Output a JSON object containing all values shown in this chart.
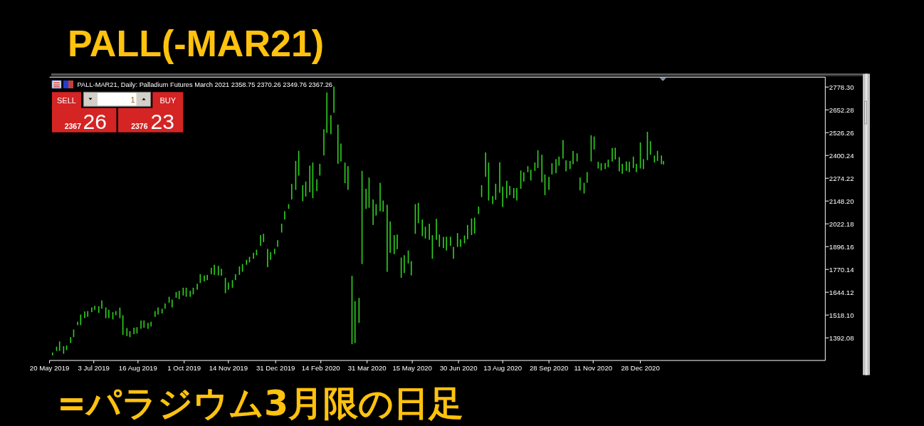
{
  "chart_data": {
    "type": "bar",
    "title": "PALL(-MAR21)",
    "subtitle": "PALL-MAR21, Daily: Palladium Futures March 2021 2358.75 2370.26 2349.76 2367.26",
    "annotations": [
      "=パラジウム3月限の日足",
      "SELL",
      "1",
      "BUY",
      "2367",
      "26",
      "2376",
      "23"
    ],
    "color": "#30d020",
    "x": [
      "2019-05-23",
      "2019-05-27",
      "2019-05-30",
      "2019-06-03",
      "2019-06-06",
      "2019-06-10",
      "2019-06-13",
      "2019-06-17",
      "2019-06-20",
      "2019-06-24",
      "2019-06-27",
      "2019-07-01",
      "2019-07-04",
      "2019-07-08",
      "2019-07-11",
      "2019-07-15",
      "2019-07-18",
      "2019-07-22",
      "2019-07-25",
      "2019-07-29",
      "2019-08-01",
      "2019-08-05",
      "2019-08-08",
      "2019-08-12",
      "2019-08-15",
      "2019-08-19",
      "2019-08-22",
      "2019-08-26",
      "2019-08-29",
      "2019-09-02",
      "2019-09-05",
      "2019-09-09",
      "2019-09-12",
      "2019-09-16",
      "2019-09-19",
      "2019-09-23",
      "2019-09-26",
      "2019-09-30",
      "2019-10-03",
      "2019-10-07",
      "2019-10-10",
      "2019-10-14",
      "2019-10-17",
      "2019-10-21",
      "2019-10-24",
      "2019-10-28",
      "2019-10-31",
      "2019-11-04",
      "2019-11-07",
      "2019-11-11",
      "2019-11-14",
      "2019-11-18",
      "2019-11-21",
      "2019-11-25",
      "2019-11-28",
      "2019-12-02",
      "2019-12-05",
      "2019-12-09",
      "2019-12-12",
      "2019-12-16",
      "2019-12-19",
      "2019-12-23",
      "2019-12-26",
      "2019-12-30",
      "2020-01-02",
      "2020-01-06",
      "2020-01-09",
      "2020-01-13",
      "2020-01-16",
      "2020-01-20",
      "2020-01-23",
      "2020-01-27",
      "2020-01-30",
      "2020-02-03",
      "2020-02-06",
      "2020-02-10",
      "2020-02-13",
      "2020-02-17",
      "2020-02-20",
      "2020-02-24",
      "2020-02-27",
      "2020-03-02",
      "2020-03-05",
      "2020-03-09",
      "2020-03-12",
      "2020-03-16",
      "2020-03-19",
      "2020-03-23",
      "2020-03-26",
      "2020-03-30",
      "2020-04-02",
      "2020-04-06",
      "2020-04-09",
      "2020-04-13",
      "2020-04-16",
      "2020-04-20",
      "2020-04-23",
      "2020-04-27",
      "2020-04-30",
      "2020-05-04",
      "2020-05-07",
      "2020-05-11",
      "2020-05-14",
      "2020-05-18",
      "2020-05-21",
      "2020-05-25",
      "2020-05-28",
      "2020-06-01",
      "2020-06-04",
      "2020-06-08",
      "2020-06-11",
      "2020-06-15",
      "2020-06-18",
      "2020-06-22",
      "2020-06-25",
      "2020-06-29",
      "2020-07-02",
      "2020-07-06",
      "2020-07-09",
      "2020-07-13",
      "2020-07-16",
      "2020-07-20",
      "2020-07-23",
      "2020-07-27",
      "2020-07-30",
      "2020-08-03",
      "2020-08-06",
      "2020-08-10",
      "2020-08-13",
      "2020-08-17",
      "2020-08-20",
      "2020-08-24",
      "2020-08-27",
      "2020-08-31",
      "2020-09-03",
      "2020-09-07",
      "2020-09-10",
      "2020-09-14",
      "2020-09-17",
      "2020-09-21",
      "2020-09-24",
      "2020-09-28",
      "2020-10-01",
      "2020-10-05",
      "2020-10-08",
      "2020-10-12",
      "2020-10-15",
      "2020-10-19",
      "2020-10-22",
      "2020-10-26",
      "2020-10-29",
      "2020-11-02",
      "2020-11-05",
      "2020-11-09",
      "2020-11-12",
      "2020-11-16",
      "2020-11-19",
      "2020-11-23",
      "2020-11-26",
      "2020-11-30",
      "2020-12-03",
      "2020-12-07",
      "2020-12-10",
      "2020-12-14",
      "2020-12-17",
      "2020-12-21",
      "2020-12-24",
      "2020-12-28",
      "2020-12-31",
      "2021-01-04",
      "2021-01-07",
      "2021-01-11",
      "2021-01-14",
      "2021-01-18",
      "2021-01-20"
    ],
    "base": [
      1295,
      1320,
      1320,
      1304,
      1324,
      1363,
      1396,
      1462,
      1462,
      1501,
      1508,
      1534,
      1547,
      1530,
      1553,
      1501,
      1501,
      1494,
      1517,
      1501,
      1409,
      1402,
      1396,
      1412,
      1416,
      1442,
      1448,
      1442,
      1455,
      1508,
      1521,
      1527,
      1553,
      1586,
      1560,
      1613,
      1606,
      1626,
      1619,
      1619,
      1632,
      1658,
      1695,
      1704,
      1711,
      1744,
      1740,
      1737,
      1735,
      1639,
      1658,
      1669,
      1711,
      1740,
      1757,
      1796,
      1809,
      1829,
      1849,
      1901,
      1921,
      1783,
      1823,
      1855,
      1895,
      1974,
      2046,
      2105,
      2157,
      2210,
      2289,
      2147,
      2173,
      2197,
      2164,
      2203,
      2289,
      2400,
      2525,
      2518,
      2636,
      2354,
      2367,
      2247,
      2210,
      1357,
      1363,
      1475,
      1800,
      2105,
      2111,
      2016,
      2068,
      2092,
      2089,
      1757,
      1862,
      1855,
      1882,
      1724,
      1750,
      1803,
      1737,
      1967,
      2026,
      1954,
      1941,
      1934,
      1829,
      1934,
      1895,
      1888,
      1875,
      1901,
      1829,
      1895,
      1895,
      1914,
      1937,
      1960,
      1968,
      2076,
      2170,
      2282,
      2151,
      2131,
      2155,
      2194,
      2115,
      2164,
      2181,
      2164,
      2151,
      2216,
      2256,
      2308,
      2262,
      2315,
      2331,
      2252,
      2181,
      2210,
      2295,
      2302,
      2344,
      2383,
      2312,
      2325,
      2352,
      2367,
      2207,
      2190,
      2249,
      2367,
      2433,
      2328,
      2317,
      2325,
      2335,
      2367,
      2378,
      2312,
      2299,
      2315,
      2308,
      2331,
      2308,
      2328,
      2325,
      2374,
      2404,
      2361,
      2370,
      2352,
      2350
    ],
    "values": [
      16,
      23,
      52,
      42,
      26,
      33,
      42,
      19,
      59,
      37,
      32,
      26,
      22,
      37,
      46,
      59,
      46,
      40,
      23,
      58,
      108,
      44,
      33,
      36,
      35,
      46,
      40,
      33,
      26,
      32,
      39,
      26,
      29,
      33,
      43,
      32,
      46,
      43,
      50,
      33,
      37,
      33,
      49,
      33,
      29,
      35,
      56,
      53,
      39,
      85,
      40,
      42,
      33,
      47,
      43,
      27,
      31,
      33,
      30,
      59,
      46,
      101,
      43,
      29,
      37,
      49,
      46,
      26,
      86,
      160,
      137,
      89,
      83,
      147,
      197,
      66,
      65,
      145,
      223,
      105,
      145,
      217,
      99,
      114,
      131,
      378,
      232,
      138,
      515,
      111,
      167,
      141,
      63,
      157,
      62,
      371,
      173,
      105,
      81,
      112,
      99,
      72,
      79,
      164,
      112,
      92,
      65,
      89,
      131,
      116,
      68,
      62,
      76,
      50,
      66,
      76,
      42,
      44,
      79,
      92,
      88,
      42,
      66,
      135,
      210,
      45,
      89,
      168,
      113,
      96,
      51,
      56,
      69,
      101,
      51,
      33,
      59,
      46,
      98,
      152,
      114,
      72,
      62,
      78,
      50,
      102,
      61,
      45,
      73,
      45,
      71,
      59,
      59,
      145,
      72,
      37,
      40,
      33,
      42,
      74,
      65,
      79,
      55,
      52,
      57,
      63,
      46,
      144,
      55,
      157,
      75,
      39,
      56,
      48,
      20
    ],
    "xlim": [
      "2019-05-20",
      "2021-06-30"
    ],
    "xticks": [
      {
        "value": "2019-05-20",
        "label": "20 May 2019"
      },
      {
        "value": "2019-07-03",
        "label": "3 Jul 2019"
      },
      {
        "value": "2019-08-16",
        "label": "16 Aug 2019"
      },
      {
        "value": "2019-10-01",
        "label": "1 Oct 2019"
      },
      {
        "value": "2019-11-14",
        "label": "14 Nov 2019"
      },
      {
        "value": "2019-12-31",
        "label": "31 Dec 2019"
      },
      {
        "value": "2020-02-14",
        "label": "14 Feb 2020"
      },
      {
        "value": "2020-03-31",
        "label": "31 Mar 2020"
      },
      {
        "value": "2020-05-15",
        "label": "15 May 2020"
      },
      {
        "value": "2020-06-30",
        "label": "30 Jun 2020"
      },
      {
        "value": "2020-08-13",
        "label": "13 Aug 2020"
      },
      {
        "value": "2020-09-28",
        "label": "28 Sep 2020"
      },
      {
        "value": "2020-11-11",
        "label": "11 Nov 2020"
      },
      {
        "value": "2020-12-28",
        "label": "28 Dec 2020"
      }
    ],
    "ylim": [
      1267,
      2833
    ],
    "yticks": [
      {
        "value": 2778.3,
        "label": "2778.30"
      },
      2652.28,
      2526.26,
      2400.24,
      2274.22,
      {
        "value": 2148.2,
        "label": "2148.20"
      },
      2022.18,
      1896.16,
      1770.14,
      1644.12,
      {
        "value": 1518.1,
        "label": "1518.10"
      },
      1392.08
    ]
  }
}
